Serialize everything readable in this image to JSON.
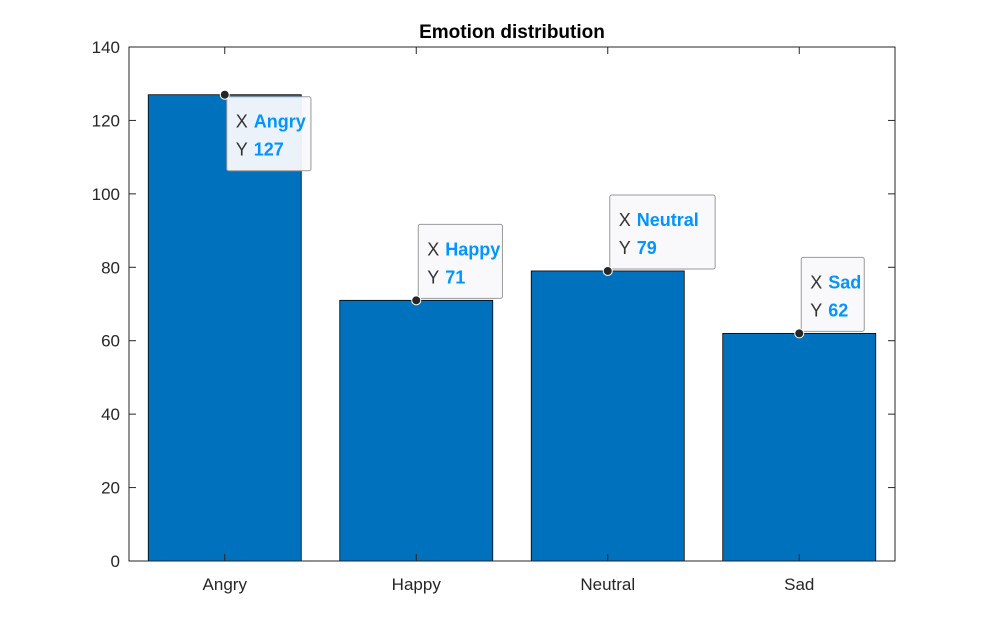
{
  "chart_data": {
    "type": "bar",
    "title": "Emotion distribution",
    "categories": [
      "Angry",
      "Happy",
      "Neutral",
      "Sad"
    ],
    "values": [
      127,
      71,
      79,
      62
    ],
    "ylim": [
      0,
      140
    ],
    "yticks": [
      0,
      20,
      40,
      60,
      80,
      100,
      120,
      140
    ],
    "xlabel": "",
    "ylabel": "",
    "grid": false,
    "bar_color": "#0072BD",
    "datatips": [
      {
        "x_key": "X",
        "x": "Angry",
        "y_key": "Y",
        "y": "127"
      },
      {
        "x_key": "X",
        "x": "Happy",
        "y_key": "Y",
        "y": "71"
      },
      {
        "x_key": "X",
        "x": "Neutral",
        "y_key": "Y",
        "y": "79"
      },
      {
        "x_key": "X",
        "x": "Sad",
        "y_key": "Y",
        "y": "62"
      }
    ],
    "datatip_value_color": "#0095FF"
  }
}
